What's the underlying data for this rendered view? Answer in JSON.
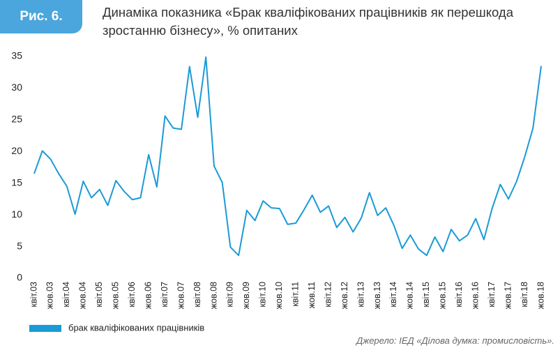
{
  "chart_data": {
    "type": "line",
    "figure_label": "Рис. 6.",
    "title": "Динаміка показника «Брак кваліфікованих працівників як перешкода зростанню бізнесу», % опитаних",
    "categories": [
      "квіт.03",
      null,
      "жов.03",
      null,
      "квіт.04",
      null,
      "жов.04",
      null,
      "квіт.05",
      null,
      "жов.05",
      null,
      "квіт.06",
      null,
      "жов.06",
      null,
      "квіт.07",
      null,
      "жов.07",
      null,
      "квіт.08",
      null,
      "жов.08",
      null,
      "квіт.09",
      null,
      "жов.09",
      null,
      "квіт.10",
      null,
      "жов.10",
      null,
      "квіт.11",
      null,
      "жов.11",
      null,
      "квіт.12",
      null,
      "жов.12",
      null,
      "квіт.13",
      null,
      "жов.13",
      null,
      "квіт.14",
      null,
      "жов.14",
      null,
      "квіт.15",
      null,
      "жов.15",
      null,
      "квіт.16",
      null,
      "жов.16",
      null,
      "квіт.17",
      null,
      "жов.17",
      null,
      "квіт.18",
      null,
      "жов.18"
    ],
    "series": [
      {
        "name": "брак кваліфікованих працівників",
        "color": "#1a9ad6",
        "values": [
          16.5,
          20.1,
          18.8,
          16.5,
          14.5,
          10.1,
          15.3,
          12.7,
          14.0,
          11.5,
          15.4,
          13.7,
          12.4,
          12.7,
          19.5,
          14.4,
          25.6,
          23.7,
          23.5,
          33.4,
          25.4,
          34.9,
          17.7,
          15.1,
          4.9,
          3.6,
          10.7,
          9.1,
          12.2,
          11.1,
          11.0,
          8.5,
          8.7,
          10.8,
          13.1,
          10.4,
          11.4,
          8.0,
          9.6,
          7.3,
          9.5,
          13.5,
          9.9,
          11.1,
          8.3,
          4.7,
          6.8,
          4.6,
          3.6,
          6.5,
          4.2,
          7.7,
          5.9,
          6.8,
          9.4,
          6.1,
          11.0,
          14.8,
          12.5,
          15.3,
          19.2,
          23.7,
          33.5
        ]
      }
    ],
    "ylim": [
      0,
      35
    ],
    "yticks": [
      0,
      5,
      10,
      15,
      20,
      25,
      30,
      35
    ],
    "source": "Джерело: ІЕД «Ділова думка: промисловість»."
  }
}
